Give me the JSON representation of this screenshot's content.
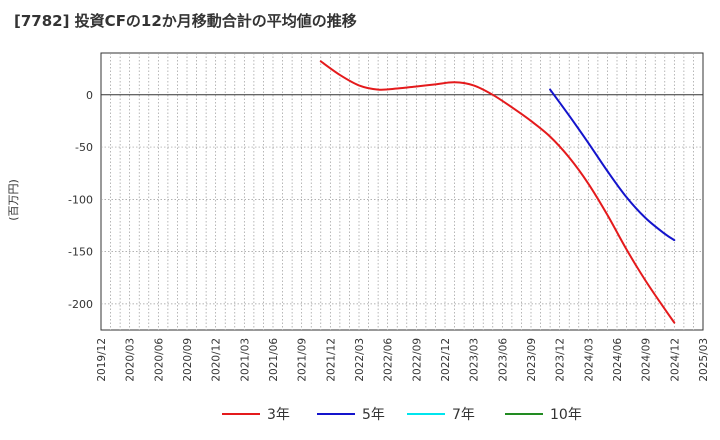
{
  "chart_data": {
    "type": "line",
    "title": "[7782]  投資CFの12か月移動合計の平均値の推移",
    "xlabel": "",
    "ylabel": "(百万円)",
    "ylim": [
      -225,
      40
    ],
    "yticks": [
      0,
      -50,
      -100,
      -150,
      -200
    ],
    "x_tick_labels": [
      "2019/12",
      "2020/03",
      "2020/06",
      "2020/09",
      "2020/12",
      "2021/03",
      "2021/06",
      "2021/09",
      "2021/12",
      "2022/03",
      "2022/06",
      "2022/09",
      "2022/12",
      "2023/03",
      "2023/06",
      "2023/09",
      "2023/12",
      "2024/03",
      "2024/06",
      "2024/09",
      "2024/12",
      "2025/03"
    ],
    "grid": true,
    "legend_position": "bottom-center",
    "series": [
      {
        "name": "3年",
        "color": "#e41a1c",
        "x": [
          "2021/11",
          "2022/01",
          "2022/03",
          "2022/05",
          "2022/07",
          "2022/09",
          "2022/11",
          "2023/01",
          "2023/03",
          "2023/05",
          "2023/07",
          "2023/09",
          "2023/11",
          "2024/01",
          "2024/03",
          "2024/05",
          "2024/07",
          "2024/09",
          "2024/11",
          "2024/12"
        ],
        "values": [
          32,
          19,
          9,
          5,
          6,
          8,
          10,
          12,
          9,
          0,
          -12,
          -25,
          -40,
          -60,
          -85,
          -115,
          -148,
          -178,
          -205,
          -218
        ]
      },
      {
        "name": "5年",
        "color": "#1414cc",
        "x": [
          "2023/11",
          "2024/01",
          "2024/03",
          "2024/05",
          "2024/07",
          "2024/09",
          "2024/11",
          "2024/12"
        ],
        "values": [
          5,
          -20,
          -46,
          -73,
          -98,
          -118,
          -133,
          -139
        ]
      },
      {
        "name": "7年",
        "color": "#00e5ee",
        "x": [],
        "values": []
      },
      {
        "name": "10年",
        "color": "#228b22",
        "x": [],
        "values": []
      }
    ]
  }
}
